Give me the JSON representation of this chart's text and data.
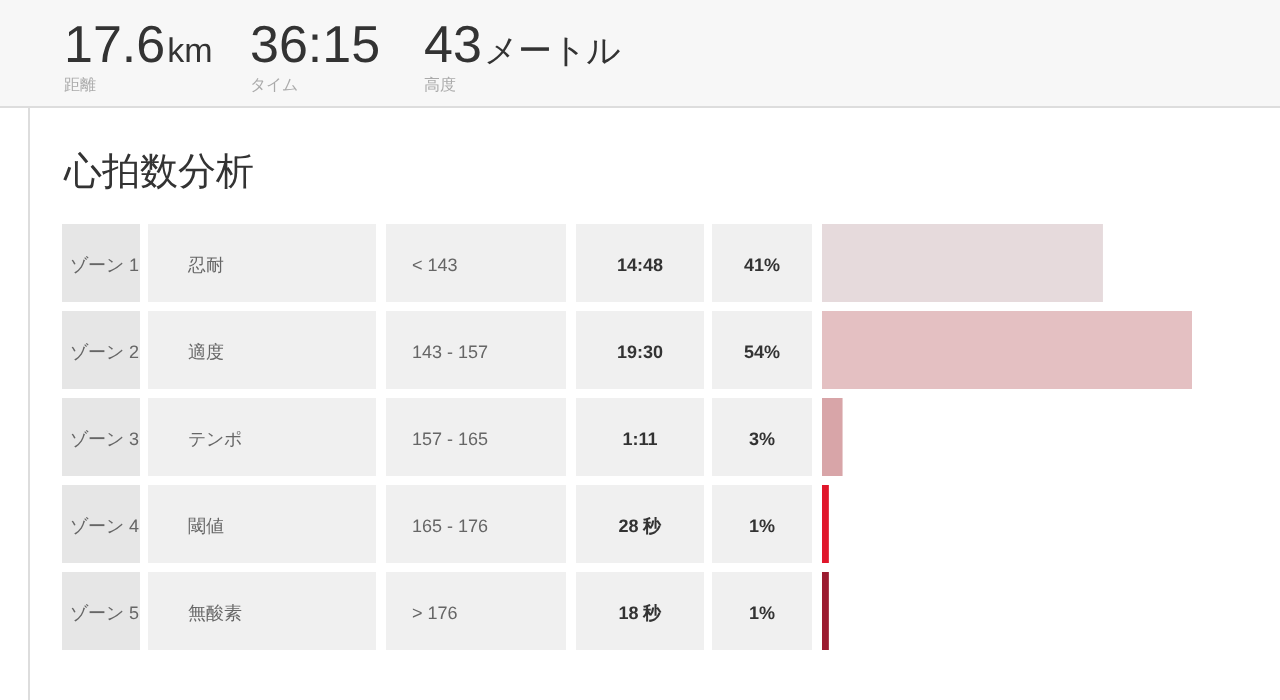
{
  "chart_data": {
    "type": "bar",
    "orientation": "horizontal",
    "title": "心拍数分析",
    "categories": [
      "ゾーン 1",
      "ゾーン 2",
      "ゾーン 3",
      "ゾーン 4",
      "ゾーン 5"
    ],
    "values": [
      41,
      54,
      3,
      1,
      1
    ],
    "value_labels": [
      "41%",
      "54%",
      "3%",
      "1%",
      "1%"
    ],
    "colors": [
      "#e6dadc",
      "#e4c0c2",
      "#d8a5a8",
      "#e0162b",
      "#9b1b30"
    ],
    "annotations": [
      "17.6km",
      "距離",
      "36:15",
      "タイム",
      "43メートル",
      "高度",
      "忍耐",
      "< 143",
      "14:48",
      "適度",
      "143 - 157",
      "19:30",
      "テンポ",
      "157 - 165",
      "1:11",
      "閾値",
      "165 - 176",
      "28 秒",
      "無酸素",
      "> 176",
      "18 秒"
    ]
  }
}
